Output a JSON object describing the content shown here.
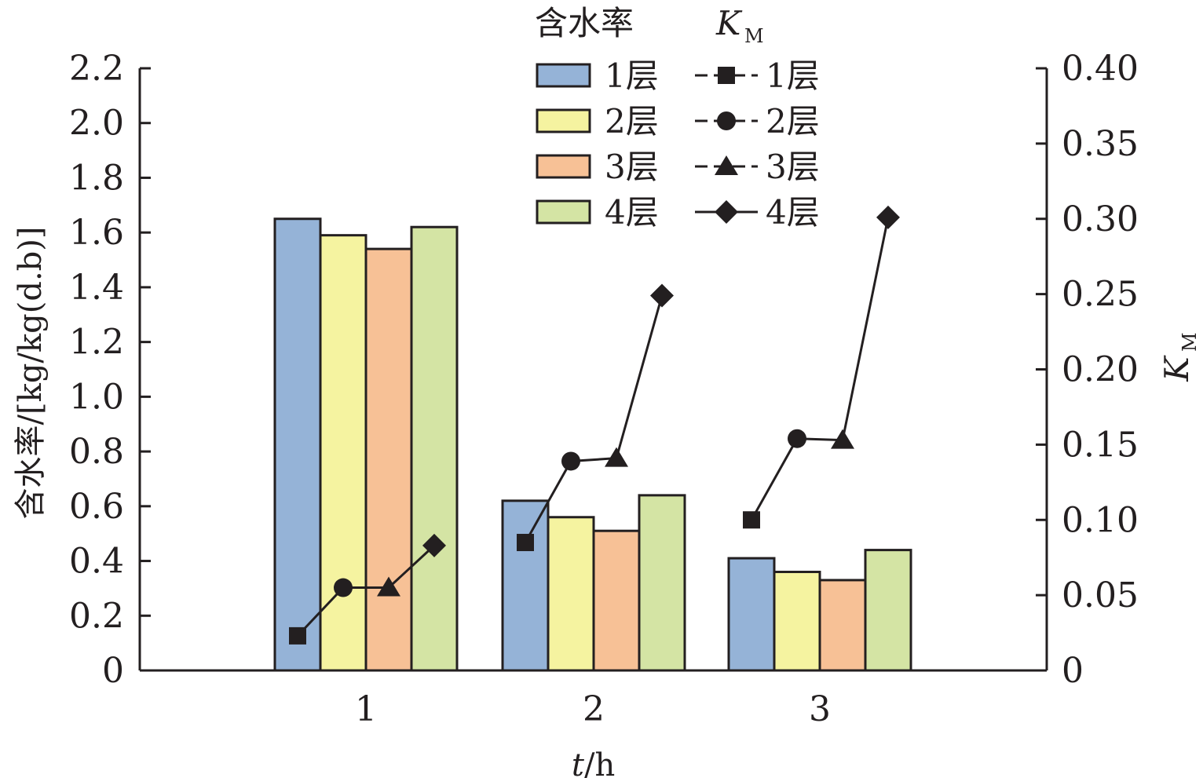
{
  "chart_data": {
    "type": "bar",
    "categories": [
      "1",
      "2",
      "3"
    ],
    "xlabel_italic": "t",
    "xlabel_rest": "/h",
    "ylabel": "含水率/[kg/kg(d.b)]",
    "ylabel_right_main": "K",
    "ylabel_right_sub": "M",
    "ylim": [
      0,
      2.2
    ],
    "ylim_right": [
      0,
      0.4
    ],
    "yticks": [
      "0",
      "0.2",
      "0.4",
      "0.6",
      "0.8",
      "1.0",
      "1.2",
      "1.4",
      "1.6",
      "1.8",
      "2.0",
      "2.2"
    ],
    "yticks_right": [
      "0",
      "0.05",
      "0.10",
      "0.15",
      "0.20",
      "0.25",
      "0.30",
      "0.35",
      "0.40"
    ],
    "legend_bar_title": "含水率",
    "legend_line_title_main": "K",
    "legend_line_title_sub": "M",
    "legend_placement": "top-center",
    "bar_series": [
      {
        "name": "1层",
        "color": "#95b3d7",
        "values": [
          1.65,
          0.62,
          0.41
        ]
      },
      {
        "name": "2层",
        "color": "#f5f3a0",
        "values": [
          1.59,
          0.56,
          0.36
        ]
      },
      {
        "name": "3层",
        "color": "#f7c196",
        "values": [
          1.54,
          0.51,
          0.33
        ]
      },
      {
        "name": "4层",
        "color": "#d4e4a4",
        "values": [
          1.62,
          0.64,
          0.44
        ]
      }
    ],
    "line_series": [
      {
        "name": "1层",
        "marker": "square",
        "dashed": true,
        "values": [
          0.023,
          0.085,
          0.1
        ]
      },
      {
        "name": "2层",
        "marker": "circle",
        "dashed": true,
        "values": [
          0.055,
          0.139,
          0.154
        ]
      },
      {
        "name": "3层",
        "marker": "triangle",
        "dashed": true,
        "values": [
          0.055,
          0.141,
          0.153
        ]
      },
      {
        "name": "4层",
        "marker": "diamond",
        "dashed": false,
        "values": [
          0.083,
          0.249,
          0.301
        ]
      }
    ]
  }
}
